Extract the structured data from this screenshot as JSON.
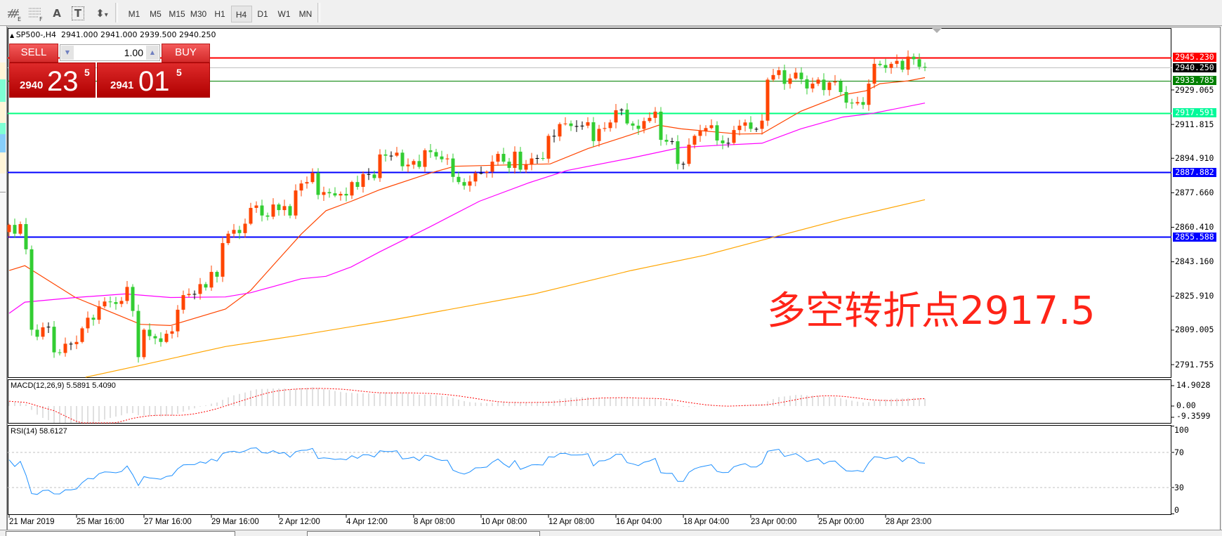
{
  "toolbar": {
    "tools": [
      {
        "icon": "elliott-wave-icon",
        "label": "E"
      },
      {
        "icon": "fibonacci-icon",
        "label": "F"
      },
      {
        "icon": "text-icon",
        "label": "A"
      },
      {
        "icon": "text-label-icon",
        "label": "T"
      },
      {
        "icon": "arrows-dropdown-icon",
        "label": "▾"
      }
    ],
    "timeframes": [
      "M1",
      "M5",
      "M15",
      "M30",
      "H1",
      "H4",
      "D1",
      "W1",
      "MN"
    ],
    "active_timeframe": "H4"
  },
  "chart": {
    "symbol_line": "SP500-,H4  2941.000 2941.000 2939.500 2940.250",
    "annotation": "多空转折点2917.5",
    "annotation_color": "#ff2418",
    "bull_color": "#ff4500",
    "bear_color": "#32cd32",
    "price_axis": [
      "2929.065",
      "2911.815",
      "2894.910",
      "2877.660",
      "2860.410",
      "2843.160",
      "2825.910",
      "2809.005",
      "2791.755"
    ],
    "levels": [
      {
        "price": 2945.23,
        "label": "2945.230",
        "color": "#ff0000",
        "text": "#ffffff",
        "width": 2
      },
      {
        "price": 2940.25,
        "label": "2940.250",
        "color": "#c0c0c0",
        "tagbg": "#000000",
        "text": "#ffffff",
        "width": 1
      },
      {
        "price": 2933.785,
        "label": "2933.785",
        "color": "#008000",
        "text": "#ffffff",
        "width": 1
      },
      {
        "price": 2917.591,
        "label": "2917.591",
        "color": "#00ff7f",
        "tagbg": "#00fa9a",
        "text": "#ffffff",
        "width": 2
      },
      {
        "price": 2887.882,
        "label": "2887.882",
        "color": "#0000ff",
        "text": "#ffffff",
        "width": 2
      },
      {
        "price": 2855.588,
        "label": "2855.588",
        "color": "#0000ff",
        "text": "#ffffff",
        "width": 2
      }
    ],
    "time_axis": [
      "21 Mar 2019",
      "25 Mar 16:00",
      "27 Mar 16:00",
      "29 Mar 16:00",
      "2 Apr 12:00",
      "4 Apr 12:00",
      "8 Apr 08:00",
      "10 Apr 08:00",
      "12 Apr 08:00",
      "16 Apr 04:00",
      "18 Apr 04:00",
      "23 Apr 00:00",
      "25 Apr 00:00",
      "28 Apr 23:00"
    ],
    "closes": [
      2861.6,
      2857.2,
      2862.0,
      2849.4,
      2809.2,
      2805.7,
      2810.4,
      2810.7,
      2797.9,
      2797.6,
      2802.2,
      2802.0,
      2803.1,
      2809.9,
      2815.2,
      2814.2,
      2820.9,
      2823.3,
      2823.0,
      2822.1,
      2823.6,
      2830.6,
      2818.6,
      2795.5,
      2809.2,
      2806.0,
      2804.9,
      2803.1,
      2807.2,
      2808.4,
      2819.2,
      2826.5,
      2827.1,
      2827.1,
      2832.0,
      2830.3,
      2838.1,
      2835.7,
      2852.5,
      2857.2,
      2859.1,
      2857.5,
      2862.2,
      2870.1,
      2871.3,
      2866.3,
      2865.7,
      2871.8,
      2869.0,
      2871.0,
      2866.3,
      2878.8,
      2882.3,
      2883.0,
      2887.6,
      2876.6,
      2878.0,
      2877.4,
      2876.3,
      2877.1,
      2876.3,
      2883.0,
      2880.6,
      2887.0,
      2886.8,
      2885.0,
      2896.8,
      2896.2,
      2896.2,
      2897.7,
      2890.9,
      2891.7,
      2893.5,
      2890.6,
      2898.9,
      2898.0,
      2895.8,
      2894.4,
      2894.8,
      2885.6,
      2883.0,
      2881.2,
      2883.3,
      2887.4,
      2887.6,
      2888.2,
      2893.2,
      2897.1,
      2893.2,
      2890.1,
      2898.2,
      2889.2,
      2891.8,
      2894.8,
      2895.0,
      2894.7,
      2906.1,
      2905.8,
      2912.0,
      2912.3,
      2911.0,
      2911.0,
      2911.2,
      2912.9,
      2903.5,
      2909.6,
      2910.0,
      2912.8,
      2918.9,
      2919.2,
      2912.3,
      2911.2,
      2909.6,
      2913.5,
      2915.1,
      2918.2,
      2904.1,
      2903.2,
      2903.4,
      2892.1,
      2892.1,
      2901.7,
      2906.1,
      2908.5,
      2910.0,
      2911.4,
      2903.8,
      2902.4,
      2902.6,
      2909.0,
      2911.2,
      2912.8,
      2909.6,
      2909.6,
      2913.7,
      2934.2,
      2936.5,
      2938.9,
      2932.1,
      2934.8,
      2937.7,
      2934.4,
      2929.8,
      2932.2,
      2934.2,
      2929.0,
      2932.8,
      2933.3,
      2928.0,
      2922.7,
      2922.3,
      2923.0,
      2921.6,
      2932.2,
      2942.1,
      2941.5,
      2940.1,
      2942.1,
      2943.6,
      2939.2,
      2945.7,
      2944.4,
      2940.6,
      2940.25
    ],
    "moving_averages": [
      {
        "color": "#ff4500",
        "points": [
          [
            0,
            2838.8
          ],
          [
            2.8,
            2841.2
          ],
          [
            11.8,
            2825.3
          ],
          [
            23.4,
            2811.9
          ],
          [
            28.7,
            2811.3
          ],
          [
            38.5,
            2819.5
          ],
          [
            43,
            2828.9
          ],
          [
            47.5,
            2843.0
          ],
          [
            52,
            2857.0
          ],
          [
            56.4,
            2868.7
          ],
          [
            60.9,
            2873.4
          ],
          [
            66,
            2879.2
          ],
          [
            74.8,
            2887.4
          ],
          [
            79.3,
            2890.9
          ],
          [
            96.3,
            2892.1
          ],
          [
            103,
            2899.7
          ],
          [
            110.7,
            2906.7
          ],
          [
            115.6,
            2911.4
          ],
          [
            119.6,
            2909.6
          ],
          [
            124,
            2908.5
          ],
          [
            129.9,
            2907.0
          ],
          [
            134,
            2907.2
          ],
          [
            140.9,
            2918.4
          ],
          [
            148.4,
            2926.6
          ],
          [
            152.5,
            2928.6
          ],
          [
            155,
            2932.2
          ],
          [
            160,
            2933.6
          ],
          [
            163,
            2935.2
          ]
        ]
      },
      {
        "color": "#ff00ff",
        "points": [
          [
            0,
            2817.4
          ],
          [
            2.8,
            2823.0
          ],
          [
            11.8,
            2825.3
          ],
          [
            20.7,
            2827.1
          ],
          [
            28.7,
            2825.3
          ],
          [
            38.5,
            2825.6
          ],
          [
            43,
            2827.7
          ],
          [
            52,
            2834.7
          ],
          [
            56.4,
            2835.9
          ],
          [
            60.9,
            2840.6
          ],
          [
            66,
            2848.2
          ],
          [
            74.8,
            2860.5
          ],
          [
            83.7,
            2873.4
          ],
          [
            92.6,
            2882.7
          ],
          [
            99.3,
            2888.8
          ],
          [
            110.7,
            2895.0
          ],
          [
            119.6,
            2900.3
          ],
          [
            126.3,
            2901.4
          ],
          [
            134,
            2902.4
          ],
          [
            140.9,
            2909.6
          ],
          [
            148.4,
            2915.5
          ],
          [
            153.4,
            2917.2
          ],
          [
            163,
            2922.5
          ]
        ]
      },
      {
        "color": "#ffa500",
        "points": [
          [
            13.6,
            2785.4
          ],
          [
            23.4,
            2791.4
          ],
          [
            38.5,
            2800.8
          ],
          [
            52,
            2806.6
          ],
          [
            68.4,
            2814.2
          ],
          [
            93.5,
            2827.1
          ],
          [
            110.7,
            2838.8
          ],
          [
            124,
            2846.5
          ],
          [
            135.4,
            2855.0
          ],
          [
            148.4,
            2864.6
          ],
          [
            163,
            2874.2
          ]
        ]
      }
    ]
  },
  "trade_panel": {
    "sell_label": "SELL",
    "buy_label": "BUY",
    "lot": "1.00",
    "sell_price_prefix": "2940",
    "sell_price_big": "23",
    "sell_price_sup": "5",
    "buy_price_prefix": "2941",
    "buy_price_big": "01",
    "buy_price_sup": "5"
  },
  "macd": {
    "label": "MACD(12,26,9) 5.5891 5.4090",
    "axis": [
      "14.9028",
      "0.00",
      "-9.3599"
    ],
    "hist_color": "#c0c0c0",
    "signal_color": "#ff0000"
  },
  "rsi": {
    "label": "RSI(14) 58.6127",
    "axis": [
      "100",
      "70",
      "30",
      "0"
    ],
    "levels": [
      70,
      30
    ],
    "line_color": "#1e90ff"
  }
}
